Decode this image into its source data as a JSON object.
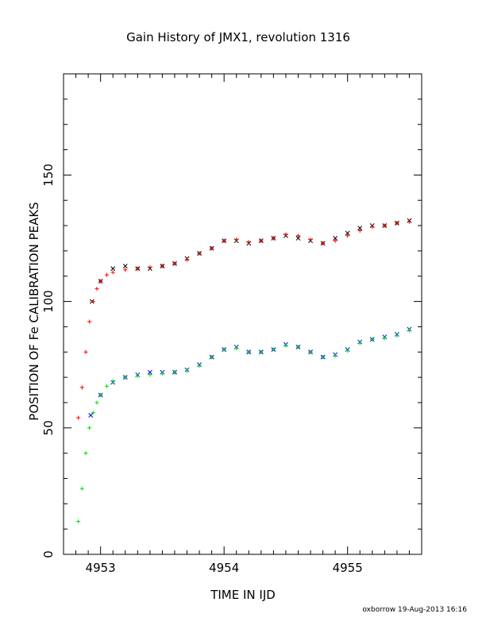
{
  "chart_data": {
    "type": "scatter",
    "title": "Gain History of JMX1, revolution 1316",
    "xlabel": "TIME IN IJD",
    "ylabel": "POSITION OF Fe CALIBRATION PEAKS",
    "xlim": [
      4952.7,
      4955.6
    ],
    "ylim": [
      0,
      190
    ],
    "xticks": [
      4953,
      4954,
      4955
    ],
    "xtick_labels": [
      "4953",
      "4954",
      "4955"
    ],
    "yticks": [
      0,
      50,
      100,
      150
    ],
    "ytick_labels": [
      "0",
      "50",
      "100",
      "150"
    ],
    "grid": false,
    "legend": "none",
    "series": [
      {
        "marker": "cross",
        "color": "#000000",
        "x": [
          4952.93,
          4953.0,
          4953.1,
          4953.2,
          4953.3,
          4953.4,
          4953.5,
          4953.6,
          4953.7,
          4953.8,
          4953.9,
          4954.0,
          4954.1,
          4954.2,
          4954.3,
          4954.4,
          4954.5,
          4954.6,
          4954.7,
          4954.8,
          4954.9,
          4955.0,
          4955.1,
          4955.2,
          4955.3,
          4955.4,
          4955.5
        ],
        "y": [
          100,
          108,
          113,
          114,
          113,
          113,
          114,
          115,
          117,
          119,
          121,
          124,
          124,
          123,
          124,
          125,
          126,
          125,
          124,
          123,
          125,
          127,
          129,
          130,
          130,
          131,
          132
        ]
      },
      {
        "marker": "plus",
        "color": "#ff0000",
        "x": [
          4952.82,
          4952.85,
          4952.88,
          4952.91,
          4952.94,
          4952.97,
          4953.0,
          4953.05,
          4953.1,
          4953.2,
          4953.3,
          4953.4,
          4953.5,
          4953.6,
          4953.7,
          4953.8,
          4953.9,
          4954.0,
          4954.1,
          4954.2,
          4954.3,
          4954.4,
          4954.5,
          4954.6,
          4954.7,
          4954.8,
          4954.9,
          4955.0,
          4955.1,
          4955.2,
          4955.3,
          4955.4,
          4955.5
        ],
        "y": [
          54,
          66,
          80,
          92,
          100,
          105,
          108,
          110.5,
          111.5,
          112.5,
          113,
          113.5,
          114,
          115,
          116.5,
          119,
          121,
          124,
          124.5,
          123.5,
          124,
          125,
          126.5,
          126,
          124.5,
          123,
          124,
          126,
          128,
          129.5,
          130,
          131,
          131.5
        ]
      },
      {
        "marker": "cross",
        "color": "#0000ff",
        "x": [
          4952.92,
          4953.0,
          4953.1,
          4953.2,
          4953.3,
          4953.4,
          4953.5,
          4953.6,
          4953.7,
          4953.8,
          4953.9,
          4954.0,
          4954.1,
          4954.2,
          4954.3,
          4954.4,
          4954.5,
          4954.6,
          4954.7,
          4954.8,
          4954.9,
          4955.0,
          4955.1,
          4955.2,
          4955.3,
          4955.4,
          4955.5
        ],
        "y": [
          55,
          63,
          68,
          70,
          71,
          72,
          72,
          72,
          73,
          75,
          78,
          81,
          82,
          80,
          80,
          81,
          83,
          82,
          80,
          78,
          79,
          81,
          84,
          85,
          86,
          87,
          89
        ]
      },
      {
        "marker": "plus",
        "color": "#00e000",
        "x": [
          4952.82,
          4952.85,
          4952.88,
          4952.91,
          4952.94,
          4952.97,
          4953.0,
          4953.05,
          4953.1,
          4953.2,
          4953.3,
          4953.4,
          4953.5,
          4953.6,
          4953.7,
          4953.8,
          4953.9,
          4954.0,
          4954.1,
          4954.2,
          4954.3,
          4954.4,
          4954.5,
          4954.6,
          4954.7,
          4954.8,
          4954.9,
          4955.0,
          4955.1,
          4955.2,
          4955.3,
          4955.4,
          4955.5
        ],
        "y": [
          13,
          26,
          40,
          50,
          56,
          60,
          63,
          66.5,
          68.5,
          70,
          70.5,
          71,
          71.5,
          72,
          72.5,
          74.5,
          78,
          81,
          81.5,
          80,
          80,
          81,
          82.5,
          82,
          80,
          78,
          78.5,
          80.5,
          83.5,
          85,
          85.5,
          86.5,
          88.5
        ]
      }
    ]
  },
  "footer": "oxborrow 19-Aug-2013 16:16"
}
